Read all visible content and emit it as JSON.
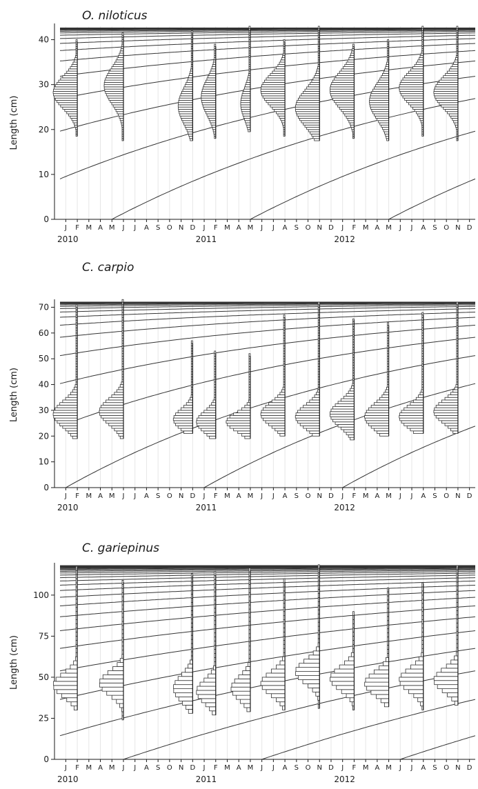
{
  "chart_data": [
    {
      "type": "histogram",
      "title": "O. niloticus",
      "ylabel": "Length (cm)",
      "ylim": [
        0,
        43
      ],
      "yticks": [
        0,
        10,
        20,
        30,
        40
      ],
      "month_labels": [
        "J",
        "F",
        "M",
        "A",
        "M",
        "J",
        "J",
        "A",
        "S",
        "O",
        "N",
        "D",
        "J",
        "F",
        "M",
        "A",
        "M",
        "J",
        "J",
        "A",
        "S",
        "O",
        "N",
        "D",
        "J",
        "F",
        "M",
        "A",
        "M",
        "J",
        "J",
        "A",
        "S",
        "O",
        "N",
        "D"
      ],
      "year_labels": [
        "2010",
        "2011",
        "2012"
      ],
      "growth_model": {
        "Linf": 42.6,
        "K": 0.38,
        "cohort_spacing_years": 1,
        "start_month_index": 4.5
      },
      "samples": [
        {
          "month_index": 1,
          "range": [
            18.5,
            39.5
          ],
          "mode": 28,
          "spread": 3.5,
          "peak": 5
        },
        {
          "month_index": 5,
          "range": [
            17.5,
            41.0
          ],
          "mode": 29.5,
          "spread": 4,
          "peak": 4
        },
        {
          "month_index": 11,
          "range": [
            17.5,
            41.5
          ],
          "mode": 25,
          "spread": 4,
          "peak": 3
        },
        {
          "month_index": 13,
          "range": [
            18,
            38.5
          ],
          "mode": 27,
          "spread": 4,
          "peak": 3
        },
        {
          "month_index": 16,
          "range": [
            19.5,
            42.5
          ],
          "mode": 25.5,
          "spread": 3.5,
          "peak": 2
        },
        {
          "month_index": 19,
          "range": [
            18.5,
            39.5
          ],
          "mode": 28.5,
          "spread": 3.5,
          "peak": 5
        },
        {
          "month_index": 22,
          "range": [
            17.5,
            42.5
          ],
          "mode": 24.5,
          "spread": 4,
          "peak": 5
        },
        {
          "month_index": 25,
          "range": [
            18,
            38.5
          ],
          "mode": 28.5,
          "spread": 4,
          "peak": 5
        },
        {
          "month_index": 28,
          "range": [
            17.5,
            39.5
          ],
          "mode": 26,
          "spread": 4,
          "peak": 4
        },
        {
          "month_index": 31,
          "range": [
            18.5,
            42.5
          ],
          "mode": 29,
          "spread": 3.5,
          "peak": 5
        },
        {
          "month_index": 34,
          "range": [
            17.5,
            42.5
          ],
          "mode": 28,
          "spread": 3.5,
          "peak": 5
        }
      ]
    },
    {
      "type": "histogram",
      "title": "C. carpio",
      "ylabel": "Length (cm)",
      "ylim": [
        0,
        72
      ],
      "yticks": [
        0,
        10,
        20,
        30,
        40,
        50,
        60,
        70
      ],
      "month_labels": [
        "J",
        "F",
        "M",
        "A",
        "M",
        "J",
        "J",
        "A",
        "S",
        "O",
        "N",
        "D",
        "J",
        "F",
        "M",
        "A",
        "M",
        "J",
        "J",
        "A",
        "S",
        "O",
        "N",
        "D",
        "J",
        "F",
        "M",
        "A",
        "M",
        "J",
        "J",
        "A",
        "S",
        "O",
        "N",
        "D"
      ],
      "year_labels": [
        "2010",
        "2011",
        "2012"
      ],
      "growth_model": {
        "Linf": 72,
        "K": 0.42,
        "cohort_spacing_years": 1,
        "start_month_index": 0.5
      },
      "samples": [
        {
          "month_index": 1,
          "range": [
            19,
            70
          ],
          "mode": 28,
          "spread": 5,
          "peak": 5
        },
        {
          "month_index": 5,
          "range": [
            19,
            72
          ],
          "mode": 29,
          "spread": 5,
          "peak": 5
        },
        {
          "month_index": 11,
          "range": [
            21,
            56
          ],
          "mode": 26,
          "spread": 4,
          "peak": 4
        },
        {
          "month_index": 13,
          "range": [
            19,
            52
          ],
          "mode": 25,
          "spread": 4,
          "peak": 4
        },
        {
          "month_index": 16,
          "range": [
            19,
            51
          ],
          "mode": 25,
          "spread": 3.5,
          "peak": 5
        },
        {
          "month_index": 19,
          "range": [
            20,
            66
          ],
          "mode": 28,
          "spread": 4.5,
          "peak": 5
        },
        {
          "month_index": 22,
          "range": [
            20,
            71
          ],
          "mode": 27,
          "spread": 4.5,
          "peak": 5
        },
        {
          "month_index": 25,
          "range": [
            18.5,
            65
          ],
          "mode": 28,
          "spread": 5,
          "peak": 5
        },
        {
          "month_index": 28,
          "range": [
            20,
            63
          ],
          "mode": 27,
          "spread": 5,
          "peak": 5
        },
        {
          "month_index": 31,
          "range": [
            21,
            67
          ],
          "mode": 27,
          "spread": 4.5,
          "peak": 5
        },
        {
          "month_index": 34,
          "range": [
            21,
            71
          ],
          "mode": 29,
          "spread": 4.5,
          "peak": 5
        }
      ]
    },
    {
      "type": "histogram",
      "title": "C. gariepinus",
      "ylabel": "Length (cm)",
      "ylim": [
        0,
        118
      ],
      "yticks": [
        0,
        25,
        50,
        75,
        100
      ],
      "month_labels": [
        "J",
        "F",
        "M",
        "A",
        "M",
        "J",
        "J",
        "A",
        "S",
        "O",
        "N",
        "D",
        "J",
        "F",
        "M",
        "A",
        "M",
        "J",
        "J",
        "A",
        "S",
        "O",
        "N",
        "D",
        "J",
        "F",
        "M",
        "A",
        "M",
        "J",
        "J",
        "A",
        "S",
        "O",
        "N",
        "D"
      ],
      "year_labels": [
        "2010",
        "2011",
        "2012"
      ],
      "growth_model": {
        "Linf": 118,
        "K": 0.24,
        "cohort_spacing_years": 1,
        "start_month_index": 5.5
      },
      "samples": [
        {
          "month_index": 1,
          "range": [
            30,
            117
          ],
          "mode": 44,
          "spread": 7,
          "peak": 5
        },
        {
          "month_index": 5,
          "range": [
            24,
            108
          ],
          "mode": 45,
          "spread": 7,
          "peak": 5
        },
        {
          "month_index": 11,
          "range": [
            28,
            112
          ],
          "mode": 42,
          "spread": 8,
          "peak": 4
        },
        {
          "month_index": 13,
          "range": [
            27,
            112
          ],
          "mode": 40,
          "spread": 7,
          "peak": 4
        },
        {
          "month_index": 16,
          "range": [
            29,
            115
          ],
          "mode": 42,
          "spread": 7,
          "peak": 4
        },
        {
          "month_index": 19,
          "range": [
            30,
            108
          ],
          "mode": 45,
          "spread": 7,
          "peak": 5
        },
        {
          "month_index": 22,
          "range": [
            31,
            117
          ],
          "mode": 52,
          "spread": 7,
          "peak": 5
        },
        {
          "month_index": 25,
          "range": [
            30,
            88
          ],
          "mode": 48,
          "spread": 7,
          "peak": 5
        },
        {
          "month_index": 28,
          "range": [
            32,
            104
          ],
          "mode": 45,
          "spread": 7,
          "peak": 5
        },
        {
          "month_index": 31,
          "range": [
            30,
            107
          ],
          "mode": 47,
          "spread": 7,
          "peak": 5
        },
        {
          "month_index": 34,
          "range": [
            33,
            117
          ],
          "mode": 47,
          "spread": 7,
          "peak": 5
        }
      ]
    }
  ],
  "colors": {
    "line": "#333333",
    "grid": "#e6e6e6",
    "bar_fill": "#ffffff"
  }
}
